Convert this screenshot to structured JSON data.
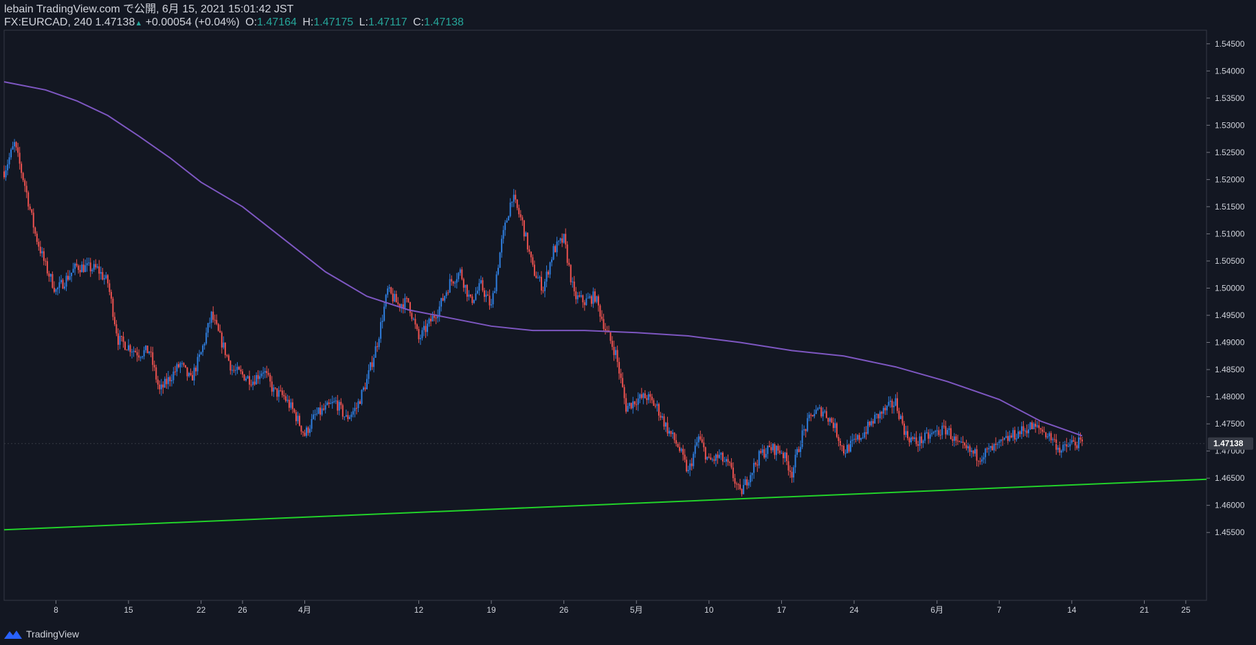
{
  "header": {
    "published": "lebain TradingView.com で公開, 6月 15, 2021 15:01:42 JST",
    "symbol": "FX:EURCAD, 240",
    "last": "1.47138",
    "change_arrow": "▲",
    "change": "+0.00054 (+0.04%)",
    "o_label": "O:",
    "o_value": "1.47164",
    "h_label": "H:",
    "h_value": "1.47175",
    "l_label": "L:",
    "l_value": "1.47117",
    "c_label": "C:",
    "c_value": "1.47138"
  },
  "footer": {
    "brand": "TradingView",
    "logo_icon": "tradingview-logo-icon"
  },
  "colors": {
    "background": "#131722",
    "up": "#2f7fe0",
    "down": "#ef5350",
    "ma": "#7e57c2",
    "trendline": "#22d32a",
    "axis_text": "#d1d4dc",
    "last_price_bg": "#363a45"
  },
  "chart_data": {
    "type": "candlestick",
    "symbol": "FX:EURCAD",
    "interval": "240",
    "ylim": [
      1.4425,
      1.5475
    ],
    "yticks": [
      "1.54500",
      "1.54000",
      "1.53500",
      "1.53000",
      "1.52500",
      "1.52000",
      "1.51500",
      "1.51000",
      "1.50500",
      "1.50000",
      "1.49500",
      "1.49000",
      "1.48500",
      "1.48000",
      "1.47500",
      "1.47000",
      "1.46500",
      "1.46000",
      "1.45500"
    ],
    "xlim_days": [
      "2021-03-03",
      "2021-06-27"
    ],
    "xticks": [
      {
        "label": "8",
        "date": "2021-03-08"
      },
      {
        "label": "15",
        "date": "2021-03-15"
      },
      {
        "label": "22",
        "date": "2021-03-22"
      },
      {
        "label": "26",
        "date": "2021-03-26"
      },
      {
        "label": "4月",
        "date": "2021-04-01"
      },
      {
        "label": "12",
        "date": "2021-04-12"
      },
      {
        "label": "19",
        "date": "2021-04-19"
      },
      {
        "label": "26",
        "date": "2021-04-26"
      },
      {
        "label": "5月",
        "date": "2021-05-03"
      },
      {
        "label": "10",
        "date": "2021-05-10"
      },
      {
        "label": "17",
        "date": "2021-05-17"
      },
      {
        "label": "24",
        "date": "2021-05-24"
      },
      {
        "label": "6月",
        "date": "2021-06-01"
      },
      {
        "label": "7",
        "date": "2021-06-07"
      },
      {
        "label": "14",
        "date": "2021-06-14"
      },
      {
        "label": "21",
        "date": "2021-06-21"
      },
      {
        "label": "25",
        "date": "2021-06-25"
      }
    ],
    "close_path": [
      {
        "date": "2021-03-03",
        "price": 1.5215
      },
      {
        "date": "2021-03-04",
        "price": 1.5265
      },
      {
        "date": "2021-03-05",
        "price": 1.519
      },
      {
        "date": "2021-03-06",
        "price": 1.51
      },
      {
        "date": "2021-03-07",
        "price": 1.504
      },
      {
        "date": "2021-03-08",
        "price": 1.4995
      },
      {
        "date": "2021-03-10",
        "price": 1.504
      },
      {
        "date": "2021-03-12",
        "price": 1.5035
      },
      {
        "date": "2021-03-13",
        "price": 1.501
      },
      {
        "date": "2021-03-14",
        "price": 1.4905
      },
      {
        "date": "2021-03-16",
        "price": 1.488
      },
      {
        "date": "2021-03-17",
        "price": 1.4885
      },
      {
        "date": "2021-03-18",
        "price": 1.481
      },
      {
        "date": "2021-03-20",
        "price": 1.486
      },
      {
        "date": "2021-03-21",
        "price": 1.483
      },
      {
        "date": "2021-03-22",
        "price": 1.488
      },
      {
        "date": "2021-03-23",
        "price": 1.495
      },
      {
        "date": "2021-03-24",
        "price": 1.49
      },
      {
        "date": "2021-03-25",
        "price": 1.485
      },
      {
        "date": "2021-03-26",
        "price": 1.484
      },
      {
        "date": "2021-03-27",
        "price": 1.483
      },
      {
        "date": "2021-03-28",
        "price": 1.485
      },
      {
        "date": "2021-03-29",
        "price": 1.481
      },
      {
        "date": "2021-03-30",
        "price": 1.48
      },
      {
        "date": "2021-03-31",
        "price": 1.477
      },
      {
        "date": "2021-04-01",
        "price": 1.473
      },
      {
        "date": "2021-04-02",
        "price": 1.4765
      },
      {
        "date": "2021-04-04",
        "price": 1.479
      },
      {
        "date": "2021-04-05",
        "price": 1.476
      },
      {
        "date": "2021-04-06",
        "price": 1.478
      },
      {
        "date": "2021-04-07",
        "price": 1.483
      },
      {
        "date": "2021-04-08",
        "price": 1.49
      },
      {
        "date": "2021-04-09",
        "price": 1.4995
      },
      {
        "date": "2021-04-10",
        "price": 1.497
      },
      {
        "date": "2021-04-11",
        "price": 1.4975
      },
      {
        "date": "2021-04-12",
        "price": 1.4905
      },
      {
        "date": "2021-04-13",
        "price": 1.4935
      },
      {
        "date": "2021-04-14",
        "price": 1.4965
      },
      {
        "date": "2021-04-15",
        "price": 1.501
      },
      {
        "date": "2021-04-16",
        "price": 1.503
      },
      {
        "date": "2021-04-17",
        "price": 1.4975
      },
      {
        "date": "2021-04-18",
        "price": 1.5005
      },
      {
        "date": "2021-04-19",
        "price": 1.4965
      },
      {
        "date": "2021-04-20",
        "price": 1.5085
      },
      {
        "date": "2021-04-21",
        "price": 1.517
      },
      {
        "date": "2021-04-22",
        "price": 1.512
      },
      {
        "date": "2021-04-23",
        "price": 1.5035
      },
      {
        "date": "2021-04-24",
        "price": 1.5
      },
      {
        "date": "2021-04-25",
        "price": 1.507
      },
      {
        "date": "2021-04-26",
        "price": 1.509
      },
      {
        "date": "2021-04-27",
        "price": 1.4985
      },
      {
        "date": "2021-04-28",
        "price": 1.4975
      },
      {
        "date": "2021-04-29",
        "price": 1.4985
      },
      {
        "date": "2021-04-30",
        "price": 1.4925
      },
      {
        "date": "2021-05-01",
        "price": 1.488
      },
      {
        "date": "2021-05-02",
        "price": 1.478
      },
      {
        "date": "2021-05-03",
        "price": 1.4795
      },
      {
        "date": "2021-05-04",
        "price": 1.48
      },
      {
        "date": "2021-05-05",
        "price": 1.478
      },
      {
        "date": "2021-05-06",
        "price": 1.474
      },
      {
        "date": "2021-05-07",
        "price": 1.471
      },
      {
        "date": "2021-05-08",
        "price": 1.466
      },
      {
        "date": "2021-05-09",
        "price": 1.4725
      },
      {
        "date": "2021-05-10",
        "price": 1.468
      },
      {
        "date": "2021-05-11",
        "price": 1.469
      },
      {
        "date": "2021-05-12",
        "price": 1.467
      },
      {
        "date": "2021-05-13",
        "price": 1.462
      },
      {
        "date": "2021-05-14",
        "price": 1.466
      },
      {
        "date": "2021-05-15",
        "price": 1.4695
      },
      {
        "date": "2021-05-16",
        "price": 1.4705
      },
      {
        "date": "2021-05-17",
        "price": 1.47
      },
      {
        "date": "2021-05-18",
        "price": 1.466
      },
      {
        "date": "2021-05-19",
        "price": 1.473
      },
      {
        "date": "2021-05-20",
        "price": 1.477
      },
      {
        "date": "2021-05-21",
        "price": 1.4775
      },
      {
        "date": "2021-05-22",
        "price": 1.475
      },
      {
        "date": "2021-05-23",
        "price": 1.47
      },
      {
        "date": "2021-05-24",
        "price": 1.4715
      },
      {
        "date": "2021-05-25",
        "price": 1.4735
      },
      {
        "date": "2021-05-26",
        "price": 1.476
      },
      {
        "date": "2021-05-27",
        "price": 1.4775
      },
      {
        "date": "2021-05-28",
        "price": 1.479
      },
      {
        "date": "2021-05-29",
        "price": 1.473
      },
      {
        "date": "2021-05-30",
        "price": 1.4715
      },
      {
        "date": "2021-05-31",
        "price": 1.4725
      },
      {
        "date": "2021-06-01",
        "price": 1.4735
      },
      {
        "date": "2021-06-02",
        "price": 1.474
      },
      {
        "date": "2021-06-03",
        "price": 1.471
      },
      {
        "date": "2021-06-04",
        "price": 1.47
      },
      {
        "date": "2021-06-05",
        "price": 1.469
      },
      {
        "date": "2021-06-06",
        "price": 1.47
      },
      {
        "date": "2021-06-07",
        "price": 1.471
      },
      {
        "date": "2021-06-08",
        "price": 1.4725
      },
      {
        "date": "2021-06-09",
        "price": 1.4735
      },
      {
        "date": "2021-06-10",
        "price": 1.4745
      },
      {
        "date": "2021-06-11",
        "price": 1.474
      },
      {
        "date": "2021-06-12",
        "price": 1.4725
      },
      {
        "date": "2021-06-13",
        "price": 1.47
      },
      {
        "date": "2021-06-14",
        "price": 1.4715
      },
      {
        "date": "2021-06-15",
        "price": 1.47138
      }
    ],
    "moving_average": [
      {
        "date": "2021-03-03",
        "price": 1.538
      },
      {
        "date": "2021-03-07",
        "price": 1.5365
      },
      {
        "date": "2021-03-10",
        "price": 1.5345
      },
      {
        "date": "2021-03-13",
        "price": 1.5318
      },
      {
        "date": "2021-03-16",
        "price": 1.528
      },
      {
        "date": "2021-03-19",
        "price": 1.524
      },
      {
        "date": "2021-03-22",
        "price": 1.5195
      },
      {
        "date": "2021-03-26",
        "price": 1.515
      },
      {
        "date": "2021-03-30",
        "price": 1.509
      },
      {
        "date": "2021-04-03",
        "price": 1.503
      },
      {
        "date": "2021-04-07",
        "price": 1.4985
      },
      {
        "date": "2021-04-11",
        "price": 1.496
      },
      {
        "date": "2021-04-15",
        "price": 1.4945
      },
      {
        "date": "2021-04-19",
        "price": 1.493
      },
      {
        "date": "2021-04-23",
        "price": 1.4922
      },
      {
        "date": "2021-04-28",
        "price": 1.4922
      },
      {
        "date": "2021-05-03",
        "price": 1.4918
      },
      {
        "date": "2021-05-08",
        "price": 1.4912
      },
      {
        "date": "2021-05-13",
        "price": 1.49
      },
      {
        "date": "2021-05-18",
        "price": 1.4885
      },
      {
        "date": "2021-05-23",
        "price": 1.4875
      },
      {
        "date": "2021-05-28",
        "price": 1.4855
      },
      {
        "date": "2021-06-02",
        "price": 1.4828
      },
      {
        "date": "2021-06-07",
        "price": 1.4795
      },
      {
        "date": "2021-06-11",
        "price": 1.4755
      },
      {
        "date": "2021-06-15",
        "price": 1.4728
      }
    ],
    "trendline": [
      {
        "date": "2021-03-03",
        "price": 1.4555
      },
      {
        "date": "2021-06-27",
        "price": 1.4648
      }
    ],
    "last_price_label": "1.47138",
    "last_price": 1.47138
  }
}
